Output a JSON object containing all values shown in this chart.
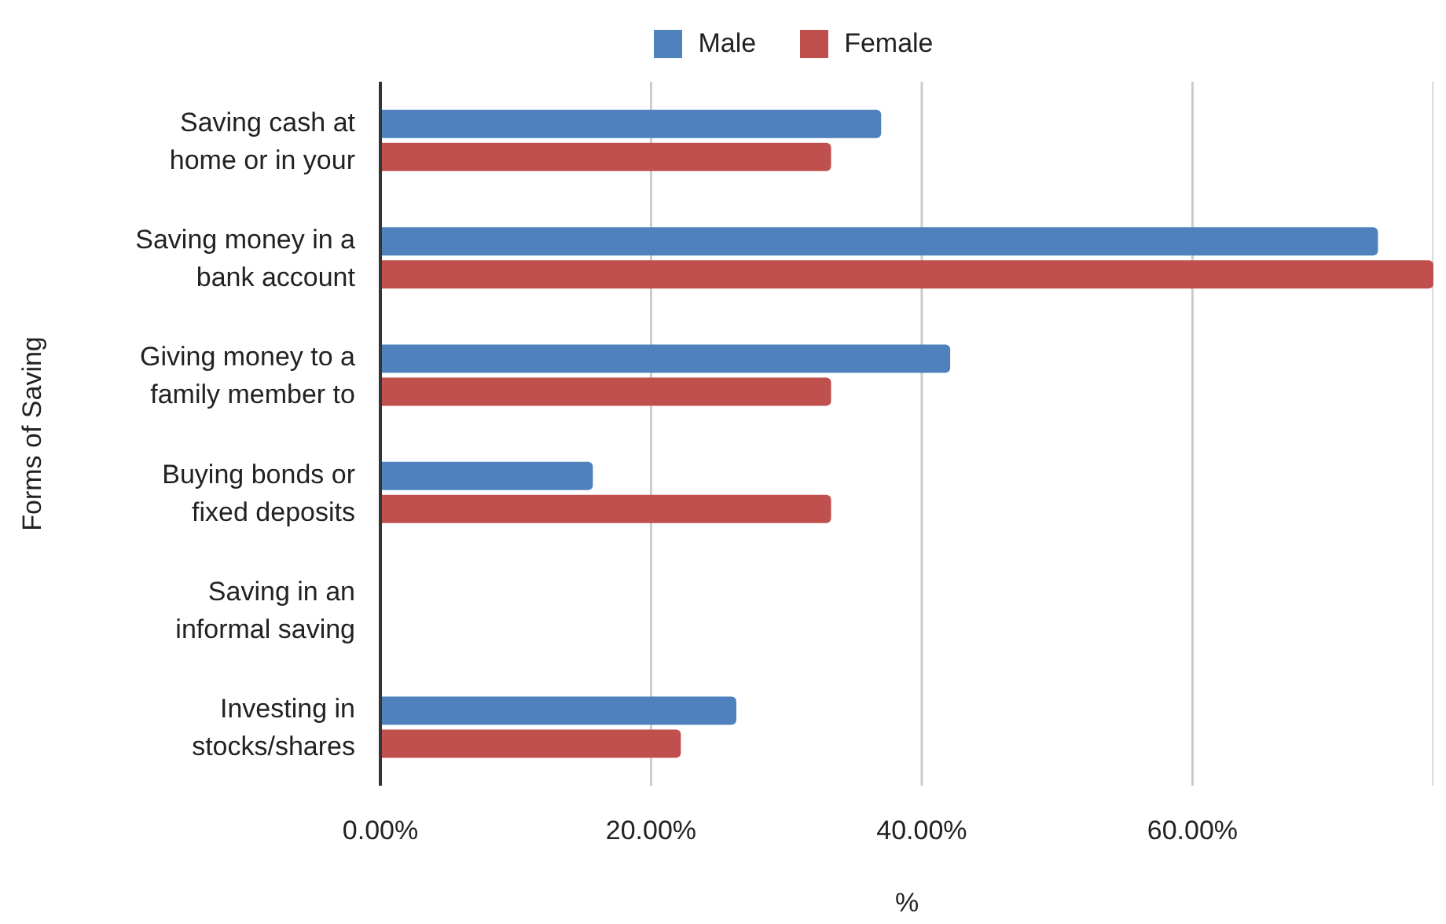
{
  "chart_data": {
    "type": "bar",
    "orientation": "horizontal",
    "xlabel": "%",
    "ylabel": "Forms of Saving",
    "categories": [
      "Saving cash at home or in your",
      "Saving money in a bank account",
      "Giving money to a family member to",
      "Buying bonds or fixed deposits",
      "Saving in an informal saving",
      "Investing in stocks/shares"
    ],
    "series": [
      {
        "name": "Male",
        "color": "#4e81bd",
        "values": [
          37.0,
          73.7,
          42.1,
          15.7,
          0,
          26.3
        ]
      },
      {
        "name": "Female",
        "color": "#c0504e",
        "values": [
          33.3,
          77.8,
          33.3,
          33.3,
          0,
          22.2
        ]
      }
    ],
    "xlim": [
      0,
      77.8
    ],
    "xticks": [
      {
        "value": 0,
        "label": "0.00%"
      },
      {
        "value": 20,
        "label": "20.00%"
      },
      {
        "value": 40,
        "label": "40.00%"
      },
      {
        "value": 60,
        "label": "60.00%"
      }
    ],
    "grid": "x",
    "legend": "top"
  }
}
